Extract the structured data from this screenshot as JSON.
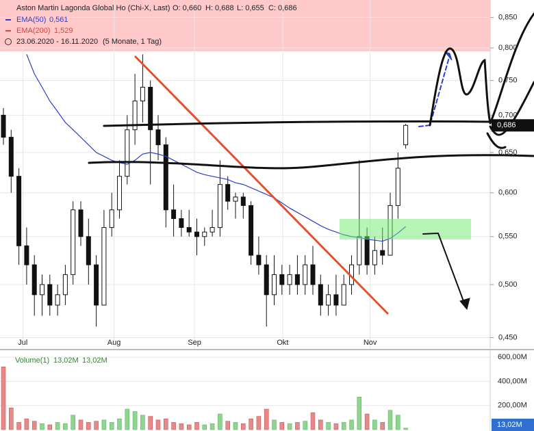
{
  "header": {
    "title": "Aston Martin Lagonda Global Ho (Chi-X, Last)",
    "ohlc": [
      "O: 0,660",
      "H: 0,688",
      "L: 0,655",
      "C: 0,686"
    ],
    "period": "23.06.2020 - 16.11.2020",
    "span": "(5 Monate, 1 Tag)"
  },
  "chart_data": [
    {
      "type": "candlestick",
      "log_scale": true,
      "ylim": [
        0.44,
        0.88
      ],
      "yticks": [
        {
          "value": 0.45,
          "label": "0,450"
        },
        {
          "value": 0.5,
          "label": "0,500"
        },
        {
          "value": 0.55,
          "label": "0,550"
        },
        {
          "value": 0.6,
          "label": "0,600"
        },
        {
          "value": 0.65,
          "label": "0,650"
        },
        {
          "value": 0.7,
          "label": "0,700"
        },
        {
          "value": 0.75,
          "label": "0,750"
        },
        {
          "value": 0.8,
          "label": "0,800"
        },
        {
          "value": 0.85,
          "label": "0,850"
        }
      ],
      "xticks": [
        {
          "value": 2.5,
          "label": "Jul"
        },
        {
          "value": 14.3,
          "label": "Aug"
        },
        {
          "value": 24.7,
          "label": "Sep"
        },
        {
          "value": 36.1,
          "label": "Okt"
        },
        {
          "value": 47.4,
          "label": "Nov"
        }
      ],
      "open": [
        0.7,
        0.67,
        0.62,
        0.54,
        0.52,
        0.49,
        0.5,
        0.48,
        0.49,
        0.51,
        0.58,
        0.55,
        0.52,
        0.48,
        0.56,
        0.58,
        0.62,
        0.68,
        0.72,
        0.74,
        0.68,
        0.66,
        0.58,
        0.57,
        0.56,
        0.555,
        0.55,
        0.555,
        0.56,
        0.61,
        0.59,
        0.595,
        0.585,
        0.53,
        0.52,
        0.49,
        0.51,
        0.5,
        0.51,
        0.5,
        0.52,
        0.5,
        0.48,
        0.49,
        0.48,
        0.5,
        0.52,
        0.55,
        0.52,
        0.535,
        0.53,
        0.585,
        0.66
      ],
      "high": [
        0.71,
        0.68,
        0.63,
        0.56,
        0.53,
        0.51,
        0.51,
        0.5,
        0.52,
        0.59,
        0.59,
        0.57,
        0.53,
        0.58,
        0.6,
        0.64,
        0.7,
        0.76,
        0.79,
        0.75,
        0.7,
        0.67,
        0.61,
        0.58,
        0.58,
        0.57,
        0.56,
        0.58,
        0.64,
        0.62,
        0.6,
        0.6,
        0.59,
        0.55,
        0.53,
        0.53,
        0.52,
        0.52,
        0.53,
        0.53,
        0.54,
        0.51,
        0.5,
        0.51,
        0.51,
        0.53,
        0.64,
        0.56,
        0.55,
        0.56,
        0.6,
        0.65,
        0.688
      ],
      "low": [
        0.66,
        0.6,
        0.52,
        0.5,
        0.47,
        0.47,
        0.47,
        0.47,
        0.48,
        0.5,
        0.54,
        0.5,
        0.46,
        0.48,
        0.55,
        0.57,
        0.61,
        0.66,
        0.69,
        0.61,
        0.64,
        0.56,
        0.55,
        0.55,
        0.55,
        0.53,
        0.54,
        0.55,
        0.55,
        0.58,
        0.57,
        0.57,
        0.52,
        0.51,
        0.46,
        0.48,
        0.49,
        0.49,
        0.49,
        0.49,
        0.49,
        0.47,
        0.47,
        0.47,
        0.48,
        0.49,
        0.51,
        0.51,
        0.51,
        0.52,
        0.53,
        0.57,
        0.655
      ],
      "close": [
        0.67,
        0.62,
        0.54,
        0.52,
        0.49,
        0.5,
        0.48,
        0.49,
        0.51,
        0.58,
        0.55,
        0.52,
        0.48,
        0.56,
        0.58,
        0.62,
        0.68,
        0.72,
        0.74,
        0.68,
        0.66,
        0.58,
        0.57,
        0.56,
        0.555,
        0.55,
        0.555,
        0.56,
        0.61,
        0.59,
        0.595,
        0.585,
        0.53,
        0.52,
        0.49,
        0.51,
        0.5,
        0.51,
        0.5,
        0.52,
        0.5,
        0.48,
        0.49,
        0.48,
        0.5,
        0.52,
        0.55,
        0.52,
        0.535,
        0.53,
        0.585,
        0.63,
        0.686
      ],
      "last_label": "0,686",
      "series": [
        {
          "name": "EMA(50)",
          "color": "#2a3fc7",
          "value_label": "0,561",
          "values": [
            null,
            null,
            null,
            0.79,
            0.76,
            0.74,
            0.72,
            0.705,
            0.69,
            0.68,
            0.67,
            0.66,
            0.65,
            0.645,
            0.64,
            0.637,
            0.635,
            0.64,
            0.648,
            0.65,
            0.648,
            0.645,
            0.64,
            0.635,
            0.63,
            0.625,
            0.622,
            0.62,
            0.618,
            0.616,
            0.612,
            0.61,
            0.606,
            0.602,
            0.598,
            0.594,
            0.588,
            0.582,
            0.577,
            0.572,
            0.567,
            0.562,
            0.558,
            0.555,
            0.552,
            0.55,
            0.549,
            0.547,
            0.546,
            0.545,
            0.548,
            0.554,
            0.561
          ]
        },
        {
          "name": "EMA(200)",
          "color": "#e04040",
          "value_label": "1,529"
        }
      ]
    },
    {
      "type": "bar",
      "title": "Volume(1)",
      "legend_values": [
        "13,02M",
        "13,02M"
      ],
      "last_label": "13,02M",
      "ylim": [
        0,
        640
      ],
      "yticks": [
        {
          "value": 200,
          "label": "200,00M"
        },
        {
          "value": 400,
          "label": "400,00M"
        },
        {
          "value": 600,
          "label": "600,00M"
        }
      ],
      "up_color": "#8fd48f",
      "down_color": "#e58a8a",
      "values": [
        520,
        180,
        60,
        90,
        70,
        50,
        40,
        60,
        50,
        120,
        80,
        60,
        70,
        80,
        60,
        90,
        170,
        150,
        120,
        110,
        80,
        90,
        60,
        50,
        40,
        60,
        40,
        50,
        130,
        70,
        60,
        50,
        90,
        110,
        170,
        80,
        60,
        50,
        60,
        70,
        140,
        80,
        60,
        50,
        60,
        80,
        270,
        130,
        80,
        60,
        160,
        120,
        13.02
      ]
    }
  ]
}
